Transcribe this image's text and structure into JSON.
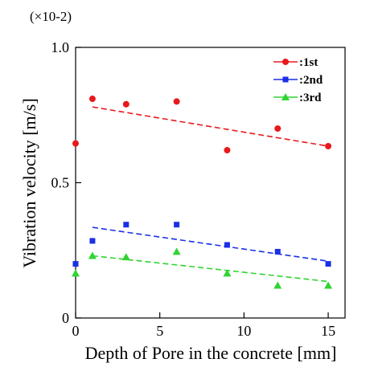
{
  "scale_note": "(×10-2)",
  "chart_data": {
    "type": "scatter",
    "xlabel": "Depth of Pore in the concrete  [mm]",
    "ylabel": "Vibration velocity  [m/s]",
    "xlim": [
      0,
      16
    ],
    "ylim": [
      0,
      1.0
    ],
    "x_ticks": [
      0,
      5,
      10,
      15
    ],
    "y_ticks": [
      0,
      0.5,
      1.0
    ],
    "x_tick_labels": [
      "0",
      "5",
      "10",
      "15"
    ],
    "y_tick_labels": [
      "0",
      "0.5",
      "1.0"
    ],
    "grid": false,
    "legend_position": "top-right",
    "x": [
      0,
      1,
      3,
      6,
      9,
      12,
      15
    ],
    "series": [
      {
        "name": ":1st",
        "color": "#e8191d",
        "marker": "circle",
        "values": [
          0.645,
          0.81,
          0.79,
          0.8,
          0.62,
          0.7,
          0.635
        ],
        "trend": [
          [
            1,
            0.78
          ],
          [
            15,
            0.635
          ]
        ]
      },
      {
        "name": ":2nd",
        "color": "#1a2fe6",
        "marker": "square",
        "values": [
          0.2,
          0.285,
          0.345,
          0.345,
          0.27,
          0.245,
          0.2
        ],
        "trend": [
          [
            1,
            0.335
          ],
          [
            15,
            0.21
          ]
        ]
      },
      {
        "name": ":3rd",
        "color": "#2fd430",
        "marker": "triangle",
        "values": [
          0.165,
          0.23,
          0.225,
          0.245,
          0.165,
          0.12,
          0.12
        ],
        "trend": [
          [
            1,
            0.23
          ],
          [
            15,
            0.135
          ]
        ]
      }
    ]
  }
}
